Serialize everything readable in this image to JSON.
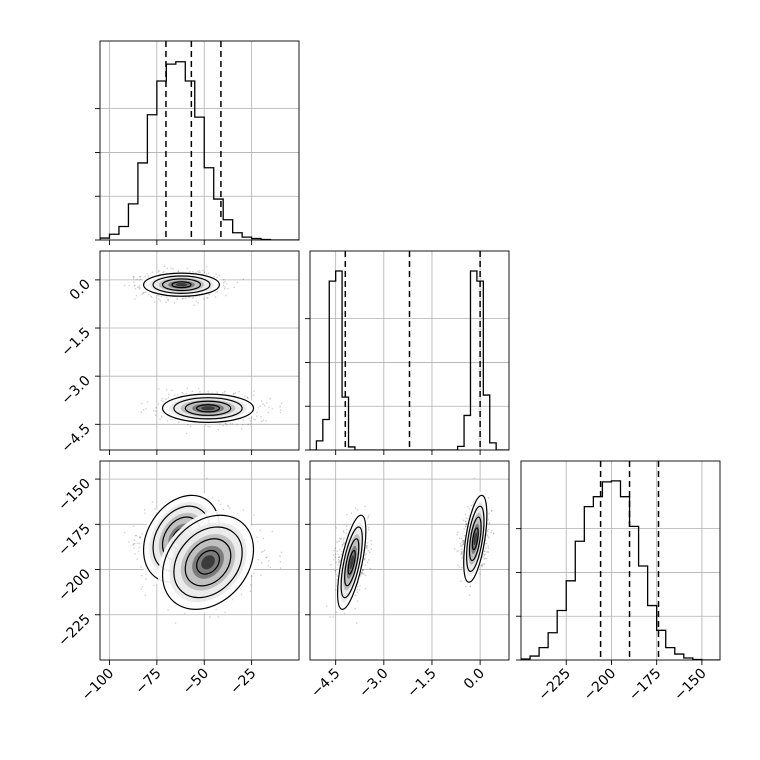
{
  "chart_data": {
    "type": "corner",
    "params": [
      {
        "range": [
          -105,
          0
        ],
        "ticks": [
          -100,
          -75,
          -50,
          -25
        ]
      },
      {
        "range": [
          -5.3,
          0.9
        ],
        "ticks": [
          -4.5,
          -3.0,
          -1.5,
          0.0
        ]
      },
      {
        "range": [
          -250,
          -140
        ],
        "ticks": [
          -225,
          -200,
          -175,
          -150
        ]
      }
    ],
    "tick_labels": {
      "p0": [
        "−100",
        "−75",
        "−50",
        "−25"
      ],
      "p1": [
        "−4.5",
        "−3.0",
        "−1.5",
        "0.0"
      ],
      "p2": [
        "−225",
        "−200",
        "−175",
        "−150"
      ]
    },
    "quantiles": [
      [
        -70.2,
        -56.8,
        -41.2
      ],
      [
        -4.2,
        -2.2,
        0.0
      ],
      [
        -206,
        -190,
        -174
      ]
    ],
    "histograms": [
      {
        "edges_start": -105,
        "bin_width": 5,
        "max": 380,
        "counts": [
          4,
          12,
          28,
          75,
          160,
          260,
          330,
          365,
          370,
          330,
          255,
          150,
          85,
          42,
          15,
          6,
          3,
          1,
          0,
          0,
          0
        ]
      },
      {
        "edges_start": -5.3,
        "bin_width": 0.2,
        "max": 900,
        "counts": [
          0,
          45,
          150,
          830,
          880,
          260,
          15,
          0,
          0,
          0,
          0,
          0,
          0,
          0,
          0,
          0,
          0,
          0,
          0,
          0,
          0,
          0,
          0,
          18,
          170,
          880,
          830,
          270,
          35,
          0,
          0
        ]
      },
      {
        "edges_start": -250,
        "bin_width": 5,
        "max": 370,
        "counts": [
          2,
          8,
          25,
          55,
          100,
          160,
          240,
          310,
          330,
          360,
          362,
          330,
          270,
          190,
          110,
          60,
          25,
          12,
          4,
          1,
          0,
          0
        ]
      }
    ],
    "clusters": [
      {
        "p0": -62,
        "p1": -0.15,
        "p2": -183,
        "s0": 10,
        "s1": 0.18,
        "s2": 12,
        "rho02": 0.3,
        "rho12": 0.5,
        "n": 2000
      },
      {
        "p0": -48,
        "p1": -4.0,
        "p2": -196,
        "s0": 12,
        "s1": 0.22,
        "s2": 13,
        "rho02": 0.3,
        "rho12": 0.6,
        "n": 2000
      }
    ],
    "grid": true
  }
}
